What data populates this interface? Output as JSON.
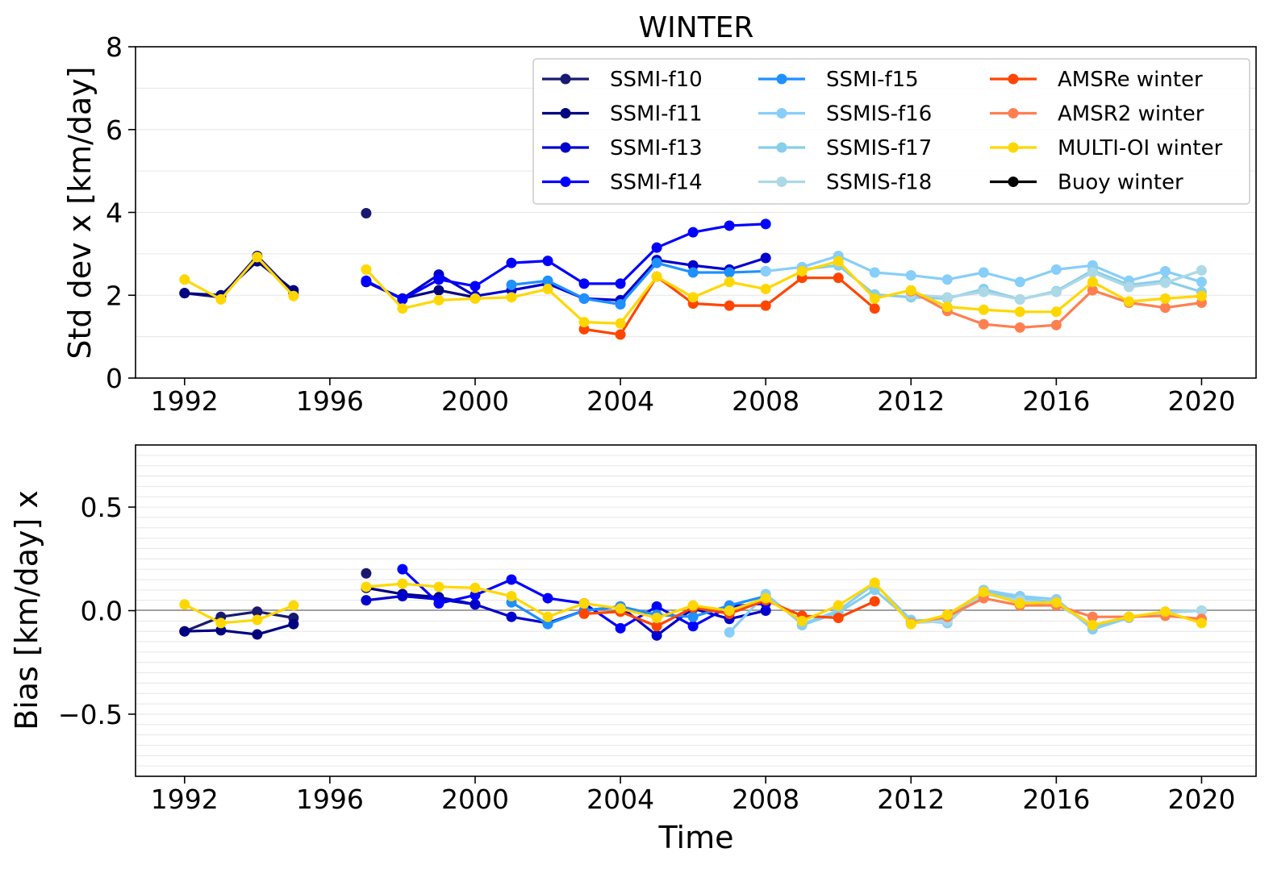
{
  "chart_data": [
    {
      "type": "line",
      "title": "WINTER",
      "xlabel": "",
      "ylabel": "Std dev x [km/day]",
      "xlim": [
        1990.65,
        2021.5
      ],
      "ylim": [
        0,
        8
      ],
      "xticks": [
        1992,
        1996,
        2000,
        2004,
        2008,
        2012,
        2016,
        2020
      ],
      "yticks": [
        0,
        2,
        4,
        6,
        8
      ],
      "grid": "horizontal minor lines",
      "legend_position": "top-right",
      "series": [
        {
          "name": "SSMI-f10",
          "color": "#191970",
          "x": [
            1992,
            1993,
            1994,
            1995,
            1997
          ],
          "y": [
            2.05,
            1.95,
            2.95,
            2.05,
            3.98
          ]
        },
        {
          "name": "SSMI-f11",
          "color": "#000080",
          "x": [
            1992,
            1993,
            1994,
            1995,
            1997,
            1998,
            1999,
            2000
          ],
          "y": [
            2.05,
            2.0,
            2.82,
            2.12,
            2.32,
            1.92,
            2.12,
            1.95
          ]
        },
        {
          "name": "SSMI-f13",
          "color": "#0000cd",
          "x": [
            1997,
            1998,
            1999,
            2000,
            2001,
            2002,
            2003,
            2004,
            2005,
            2006,
            2007,
            2008
          ],
          "y": [
            2.32,
            1.92,
            2.5,
            1.98,
            2.12,
            2.28,
            1.92,
            1.88,
            2.85,
            2.72,
            2.62,
            2.9
          ]
        },
        {
          "name": "SSMI-f14",
          "color": "#0000ff",
          "x": [
            1997,
            1998,
            1999,
            2000,
            2001,
            2002,
            2003,
            2004,
            2005,
            2006,
            2007,
            2008
          ],
          "y": [
            2.35,
            1.9,
            2.38,
            2.22,
            2.78,
            2.83,
            2.28,
            2.28,
            3.15,
            3.52,
            3.68,
            3.72
          ]
        },
        {
          "name": "SSMI-f15",
          "color": "#1e90ff",
          "x": [
            2001,
            2002,
            2003,
            2004,
            2005,
            2006,
            2007,
            2008
          ],
          "y": [
            2.25,
            2.35,
            1.92,
            1.78,
            2.78,
            2.55,
            2.55,
            2.58
          ]
        },
        {
          "name": "SSMIS-f16",
          "color": "#87cefa",
          "x": [
            2008,
            2009,
            2010,
            2011,
            2012,
            2013,
            2014,
            2015,
            2016,
            2017,
            2018,
            2019,
            2020
          ],
          "y": [
            2.58,
            2.68,
            2.95,
            2.55,
            2.48,
            2.38,
            2.55,
            2.32,
            2.62,
            2.72,
            2.35,
            2.58,
            2.32
          ]
        },
        {
          "name": "SSMIS-f17",
          "color": "#87ceeb",
          "x": [
            2009,
            2010,
            2011,
            2012,
            2013,
            2014,
            2015,
            2016,
            2017,
            2018,
            2019,
            2020
          ],
          "y": [
            2.62,
            2.72,
            2.02,
            1.95,
            1.92,
            2.15,
            1.9,
            2.1,
            2.6,
            2.25,
            2.35,
            2.08
          ]
        },
        {
          "name": "SSMIS-f18",
          "color": "#add8e6",
          "x": [
            2012,
            2013,
            2014,
            2015,
            2016,
            2017,
            2018,
            2019,
            2020
          ],
          "y": [
            2.02,
            1.95,
            2.08,
            1.9,
            2.08,
            2.55,
            2.2,
            2.3,
            2.6
          ]
        },
        {
          "name": "AMSRe winter",
          "color": "#ff4500",
          "x": [
            2003,
            2004,
            2005,
            2006,
            2007,
            2008,
            2009,
            2010,
            2011
          ],
          "y": [
            1.18,
            1.05,
            2.45,
            1.8,
            1.75,
            1.75,
            2.42,
            2.42,
            1.68
          ]
        },
        {
          "name": "AMSR2 winter",
          "color": "#ff7f50",
          "x": [
            2012,
            2013,
            2014,
            2015,
            2016,
            2017,
            2018,
            2019,
            2020
          ],
          "y": [
            2.1,
            1.62,
            1.3,
            1.22,
            1.28,
            2.12,
            1.82,
            1.7,
            1.82
          ]
        },
        {
          "name": "MULTI-OI winter",
          "color": "#ffd700",
          "x": [
            1992,
            1993,
            1994,
            1995,
            1997,
            1998,
            1999,
            2000,
            2001,
            2002,
            2003,
            2004,
            2005,
            2006,
            2007,
            2008,
            2009,
            2010,
            2011,
            2012,
            2013,
            2014,
            2015,
            2016,
            2017,
            2018,
            2019,
            2020
          ],
          "y": [
            2.38,
            1.9,
            2.92,
            1.98,
            2.62,
            1.68,
            1.88,
            1.92,
            1.95,
            2.15,
            1.35,
            1.32,
            2.45,
            1.95,
            2.32,
            2.15,
            2.58,
            2.82,
            1.92,
            2.12,
            1.72,
            1.65,
            1.6,
            1.6,
            2.32,
            1.85,
            1.92,
            1.98
          ]
        },
        {
          "name": "Buoy winter",
          "color": "#000000",
          "x": [],
          "y": []
        }
      ]
    },
    {
      "type": "line",
      "title": "",
      "xlabel": "Time",
      "ylabel": "Bias [km/day] x",
      "xlim": [
        1990.65,
        2021.5
      ],
      "ylim": [
        -0.8,
        0.8
      ],
      "xticks": [
        1992,
        1996,
        2000,
        2004,
        2008,
        2012,
        2016,
        2020
      ],
      "yticks": [
        -0.5,
        0.0,
        0.5
      ],
      "ytick_labels": [
        "−0.5",
        "0.0",
        "0.5"
      ],
      "grid": "horizontal minor lines",
      "zero_line": true,
      "series": [
        {
          "name": "SSMI-f10",
          "color": "#191970",
          "x": [
            1992,
            1993,
            1994,
            1995,
            1997
          ],
          "y": [
            -0.1,
            -0.03,
            -0.005,
            -0.035,
            0.18
          ]
        },
        {
          "name": "SSMI-f11",
          "color": "#000080",
          "x": [
            1992,
            1993,
            1994,
            1995,
            1997,
            1998,
            1999,
            2000
          ],
          "y": [
            -0.1,
            -0.095,
            -0.115,
            -0.065,
            0.11,
            0.08,
            0.065,
            0.03
          ]
        },
        {
          "name": "SSMI-f13",
          "color": "#0000cd",
          "x": [
            1997,
            1998,
            1999,
            2000,
            2001,
            2002,
            2003,
            2004,
            2005,
            2006,
            2007,
            2008
          ],
          "y": [
            0.05,
            0.07,
            0.055,
            0.03,
            -0.03,
            -0.06,
            0.0,
            0.02,
            -0.12,
            0.01,
            -0.04,
            0.0
          ]
        },
        {
          "name": "SSMI-f14",
          "color": "#0000ff",
          "x": [
            1998,
            1999,
            2000,
            2001,
            2002,
            2003,
            2004,
            2005,
            2006,
            2007,
            2008
          ],
          "y": [
            0.2,
            0.035,
            0.075,
            0.15,
            0.06,
            0.035,
            -0.085,
            0.02,
            -0.075,
            0.02,
            0.035
          ]
        },
        {
          "name": "SSMI-f15",
          "color": "#1e90ff",
          "x": [
            2001,
            2002,
            2003,
            2004,
            2005,
            2006,
            2007,
            2008
          ],
          "y": [
            0.04,
            -0.065,
            0.0,
            0.02,
            -0.02,
            -0.03,
            0.025,
            0.07
          ]
        },
        {
          "name": "SSMIS-f16",
          "color": "#87cefa",
          "x": [
            2007,
            2008,
            2009,
            2010,
            2011,
            2012,
            2013,
            2014,
            2015,
            2016,
            2017,
            2018,
            2019,
            2020
          ],
          "y": [
            -0.105,
            0.08,
            -0.065,
            0.0,
            0.13,
            -0.045,
            -0.06,
            0.1,
            0.07,
            0.055,
            -0.09,
            -0.035,
            -0.005,
            0.0
          ]
        },
        {
          "name": "SSMIS-f17",
          "color": "#87ceeb",
          "x": [
            2009,
            2010,
            2011,
            2012,
            2013,
            2014,
            2015,
            2016,
            2017,
            2018,
            2019,
            2020
          ],
          "y": [
            -0.07,
            -0.01,
            0.1,
            -0.05,
            -0.04,
            0.09,
            0.06,
            0.04,
            -0.08,
            -0.03,
            -0.01,
            0.0
          ]
        },
        {
          "name": "SSMIS-f18",
          "color": "#add8e6",
          "x": [
            2012,
            2013,
            2014,
            2015,
            2016,
            2017,
            2018,
            2019,
            2020
          ],
          "y": [
            -0.06,
            -0.05,
            0.08,
            0.05,
            0.03,
            -0.07,
            -0.03,
            -0.01,
            0.0
          ]
        },
        {
          "name": "AMSRe winter",
          "color": "#ff4500",
          "x": [
            2003,
            2004,
            2005,
            2006,
            2007,
            2008,
            2009,
            2010,
            2011
          ],
          "y": [
            -0.015,
            -0.005,
            -0.075,
            0.015,
            -0.015,
            0.05,
            -0.025,
            -0.035,
            0.045
          ]
        },
        {
          "name": "AMSR2 winter",
          "color": "#ff7f50",
          "x": [
            2012,
            2013,
            2014,
            2015,
            2016,
            2017,
            2018,
            2019,
            2020
          ],
          "y": [
            -0.06,
            -0.03,
            0.06,
            0.025,
            0.025,
            -0.03,
            -0.03,
            -0.025,
            -0.04
          ]
        },
        {
          "name": "MULTI-OI winter",
          "color": "#ffd700",
          "x": [
            1992,
            1993,
            1994,
            1995,
            1997,
            1998,
            1999,
            2000,
            2001,
            2002,
            2003,
            2004,
            2005,
            2006,
            2007,
            2008,
            2009,
            2010,
            2011,
            2012,
            2013,
            2014,
            2015,
            2016,
            2017,
            2018,
            2019,
            2020
          ],
          "y": [
            0.03,
            -0.06,
            -0.045,
            0.025,
            0.115,
            0.13,
            0.115,
            0.11,
            0.07,
            -0.03,
            0.035,
            0.01,
            -0.035,
            0.025,
            0.0,
            0.06,
            -0.05,
            0.025,
            0.135,
            -0.065,
            -0.02,
            0.09,
            0.035,
            0.04,
            -0.07,
            -0.03,
            -0.005,
            -0.06
          ]
        },
        {
          "name": "Buoy winter",
          "color": "#000000",
          "x": [],
          "y": []
        }
      ]
    }
  ]
}
